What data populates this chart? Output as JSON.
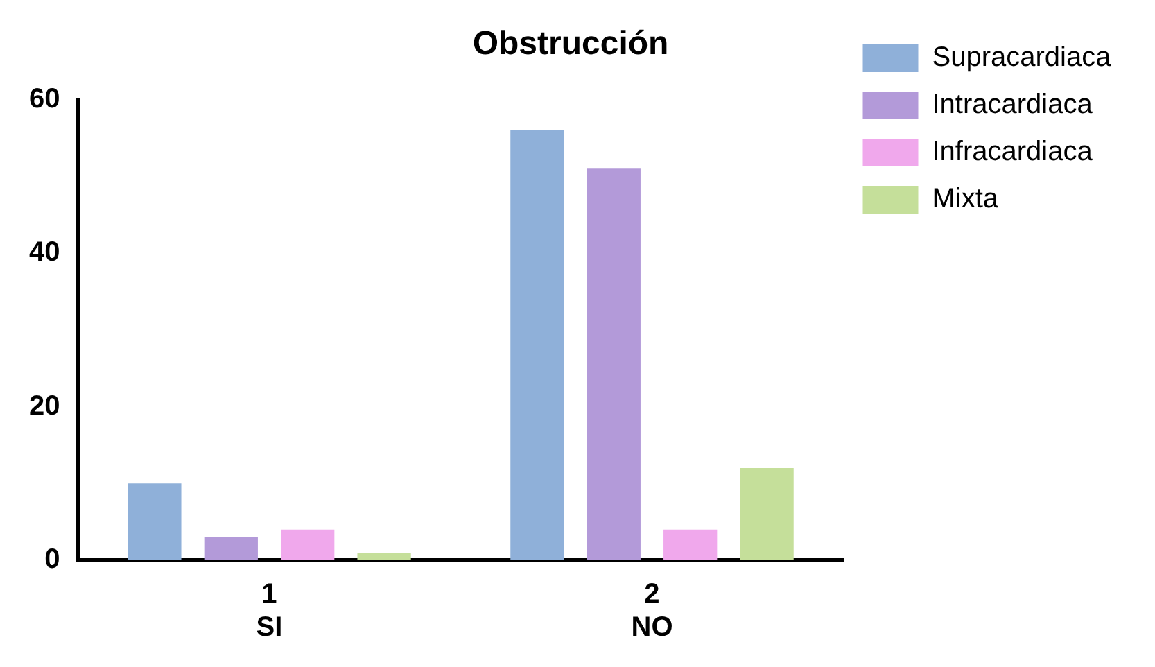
{
  "chart_data": {
    "type": "bar",
    "title": "Obstrucción",
    "categories": [
      "1\nSI",
      "2\nNO"
    ],
    "series": [
      {
        "name": "Supracardiaca",
        "color": "#8fb0d9",
        "values": [
          10,
          56
        ]
      },
      {
        "name": "Intracardiaca",
        "color": "#b39ad9",
        "values": [
          3,
          51
        ]
      },
      {
        "name": "Infracardiaca",
        "color": "#f0a8ec",
        "values": [
          4,
          4
        ]
      },
      {
        "name": "Mixta",
        "color": "#c5df9a",
        "values": [
          1,
          12
        ]
      }
    ],
    "ylim": [
      0,
      60
    ],
    "yticks": [
      0,
      20,
      40,
      60
    ],
    "grid": false,
    "legend": "top right"
  }
}
